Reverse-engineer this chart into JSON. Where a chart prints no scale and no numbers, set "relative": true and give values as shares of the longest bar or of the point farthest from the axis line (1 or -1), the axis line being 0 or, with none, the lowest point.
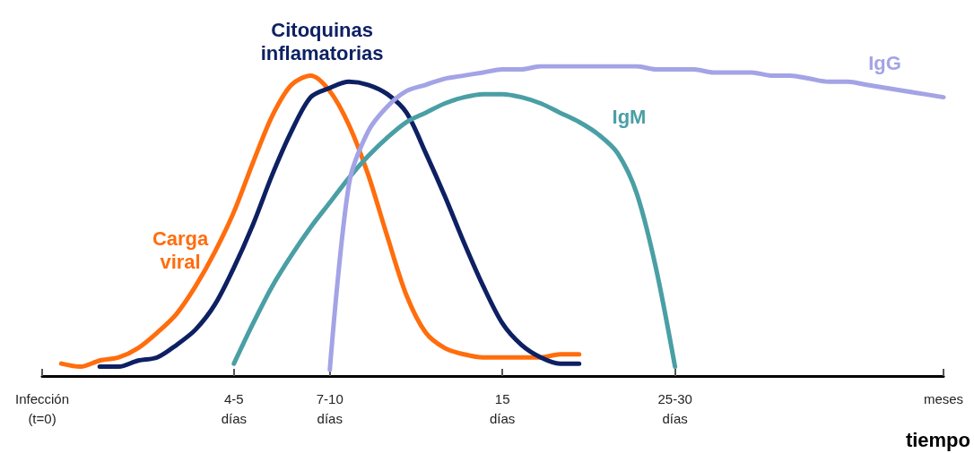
{
  "chart_data": {
    "type": "line",
    "relative": true,
    "xlabel": "tiempo",
    "categories": [
      "Infección\n(t=0)",
      null,
      null,
      null,
      null,
      null,
      null,
      null,
      null,
      null,
      "4-5\ndías",
      null,
      null,
      null,
      null,
      "7-10\ndías",
      null,
      null,
      null,
      null,
      null,
      null,
      null,
      null,
      "15\ndías",
      null,
      null,
      null,
      null,
      null,
      null,
      null,
      null,
      "25-30\ndías",
      null,
      null,
      null,
      null,
      null,
      null,
      null,
      null,
      null,
      null,
      null,
      null,
      null,
      "meses"
    ],
    "legend": false,
    "marker": "none",
    "line_style": "solid",
    "grid": false,
    "series": [
      {
        "name": "Carga\nviral",
        "color": "#ff6d0d",
        "values": [
          null,
          0.04,
          0.03,
          0.05,
          0.06,
          0.09,
          0.14,
          0.2,
          0.29,
          0.4,
          0.53,
          0.69,
          0.84,
          0.94,
          0.97,
          0.92,
          0.81,
          0.65,
          0.45,
          0.26,
          0.14,
          0.09,
          0.07,
          0.06,
          0.06,
          0.06,
          0.06,
          0.07,
          0.07,
          null,
          null,
          null,
          null,
          null,
          null,
          null,
          null,
          null,
          null,
          null,
          null,
          null,
          null,
          null,
          null,
          null,
          null,
          null
        ]
      },
      {
        "name": "Citoquinas\ninflamatorias",
        "color": "#0d2063",
        "values": [
          null,
          null,
          null,
          0.03,
          0.03,
          0.05,
          0.06,
          0.1,
          0.15,
          0.23,
          0.35,
          0.49,
          0.65,
          0.79,
          0.9,
          0.93,
          0.95,
          0.94,
          0.91,
          0.85,
          0.72,
          0.58,
          0.43,
          0.29,
          0.17,
          0.1,
          0.06,
          0.04,
          0.04,
          null,
          null,
          null,
          null,
          null,
          null,
          null,
          null,
          null,
          null,
          null,
          null,
          null,
          null,
          null,
          null,
          null,
          null,
          null
        ]
      },
      {
        "name": "IgM",
        "color": "#4a9fa5",
        "values": [
          null,
          null,
          null,
          null,
          null,
          null,
          null,
          null,
          null,
          null,
          0.04,
          0.17,
          0.29,
          0.39,
          0.48,
          0.56,
          0.64,
          0.71,
          0.77,
          0.82,
          0.85,
          0.88,
          0.9,
          0.91,
          0.91,
          0.9,
          0.88,
          0.85,
          0.82,
          0.78,
          0.72,
          0.59,
          0.35,
          0.03,
          null,
          null,
          null,
          null,
          null,
          null,
          null,
          null,
          null,
          null,
          null,
          null,
          null,
          null
        ]
      },
      {
        "name": "IgG",
        "color": "#a3a3e6",
        "values": [
          null,
          null,
          null,
          null,
          null,
          null,
          null,
          null,
          null,
          null,
          null,
          null,
          null,
          null,
          null,
          0.02,
          0.62,
          0.79,
          0.87,
          0.92,
          0.94,
          0.96,
          0.97,
          0.98,
          0.99,
          0.99,
          1.0,
          1.0,
          1.0,
          1.0,
          1.0,
          1.0,
          0.99,
          0.99,
          0.99,
          0.98,
          0.98,
          0.98,
          0.97,
          0.97,
          0.96,
          0.95,
          0.95,
          0.94,
          0.93,
          0.92,
          0.91,
          0.9
        ]
      }
    ]
  }
}
